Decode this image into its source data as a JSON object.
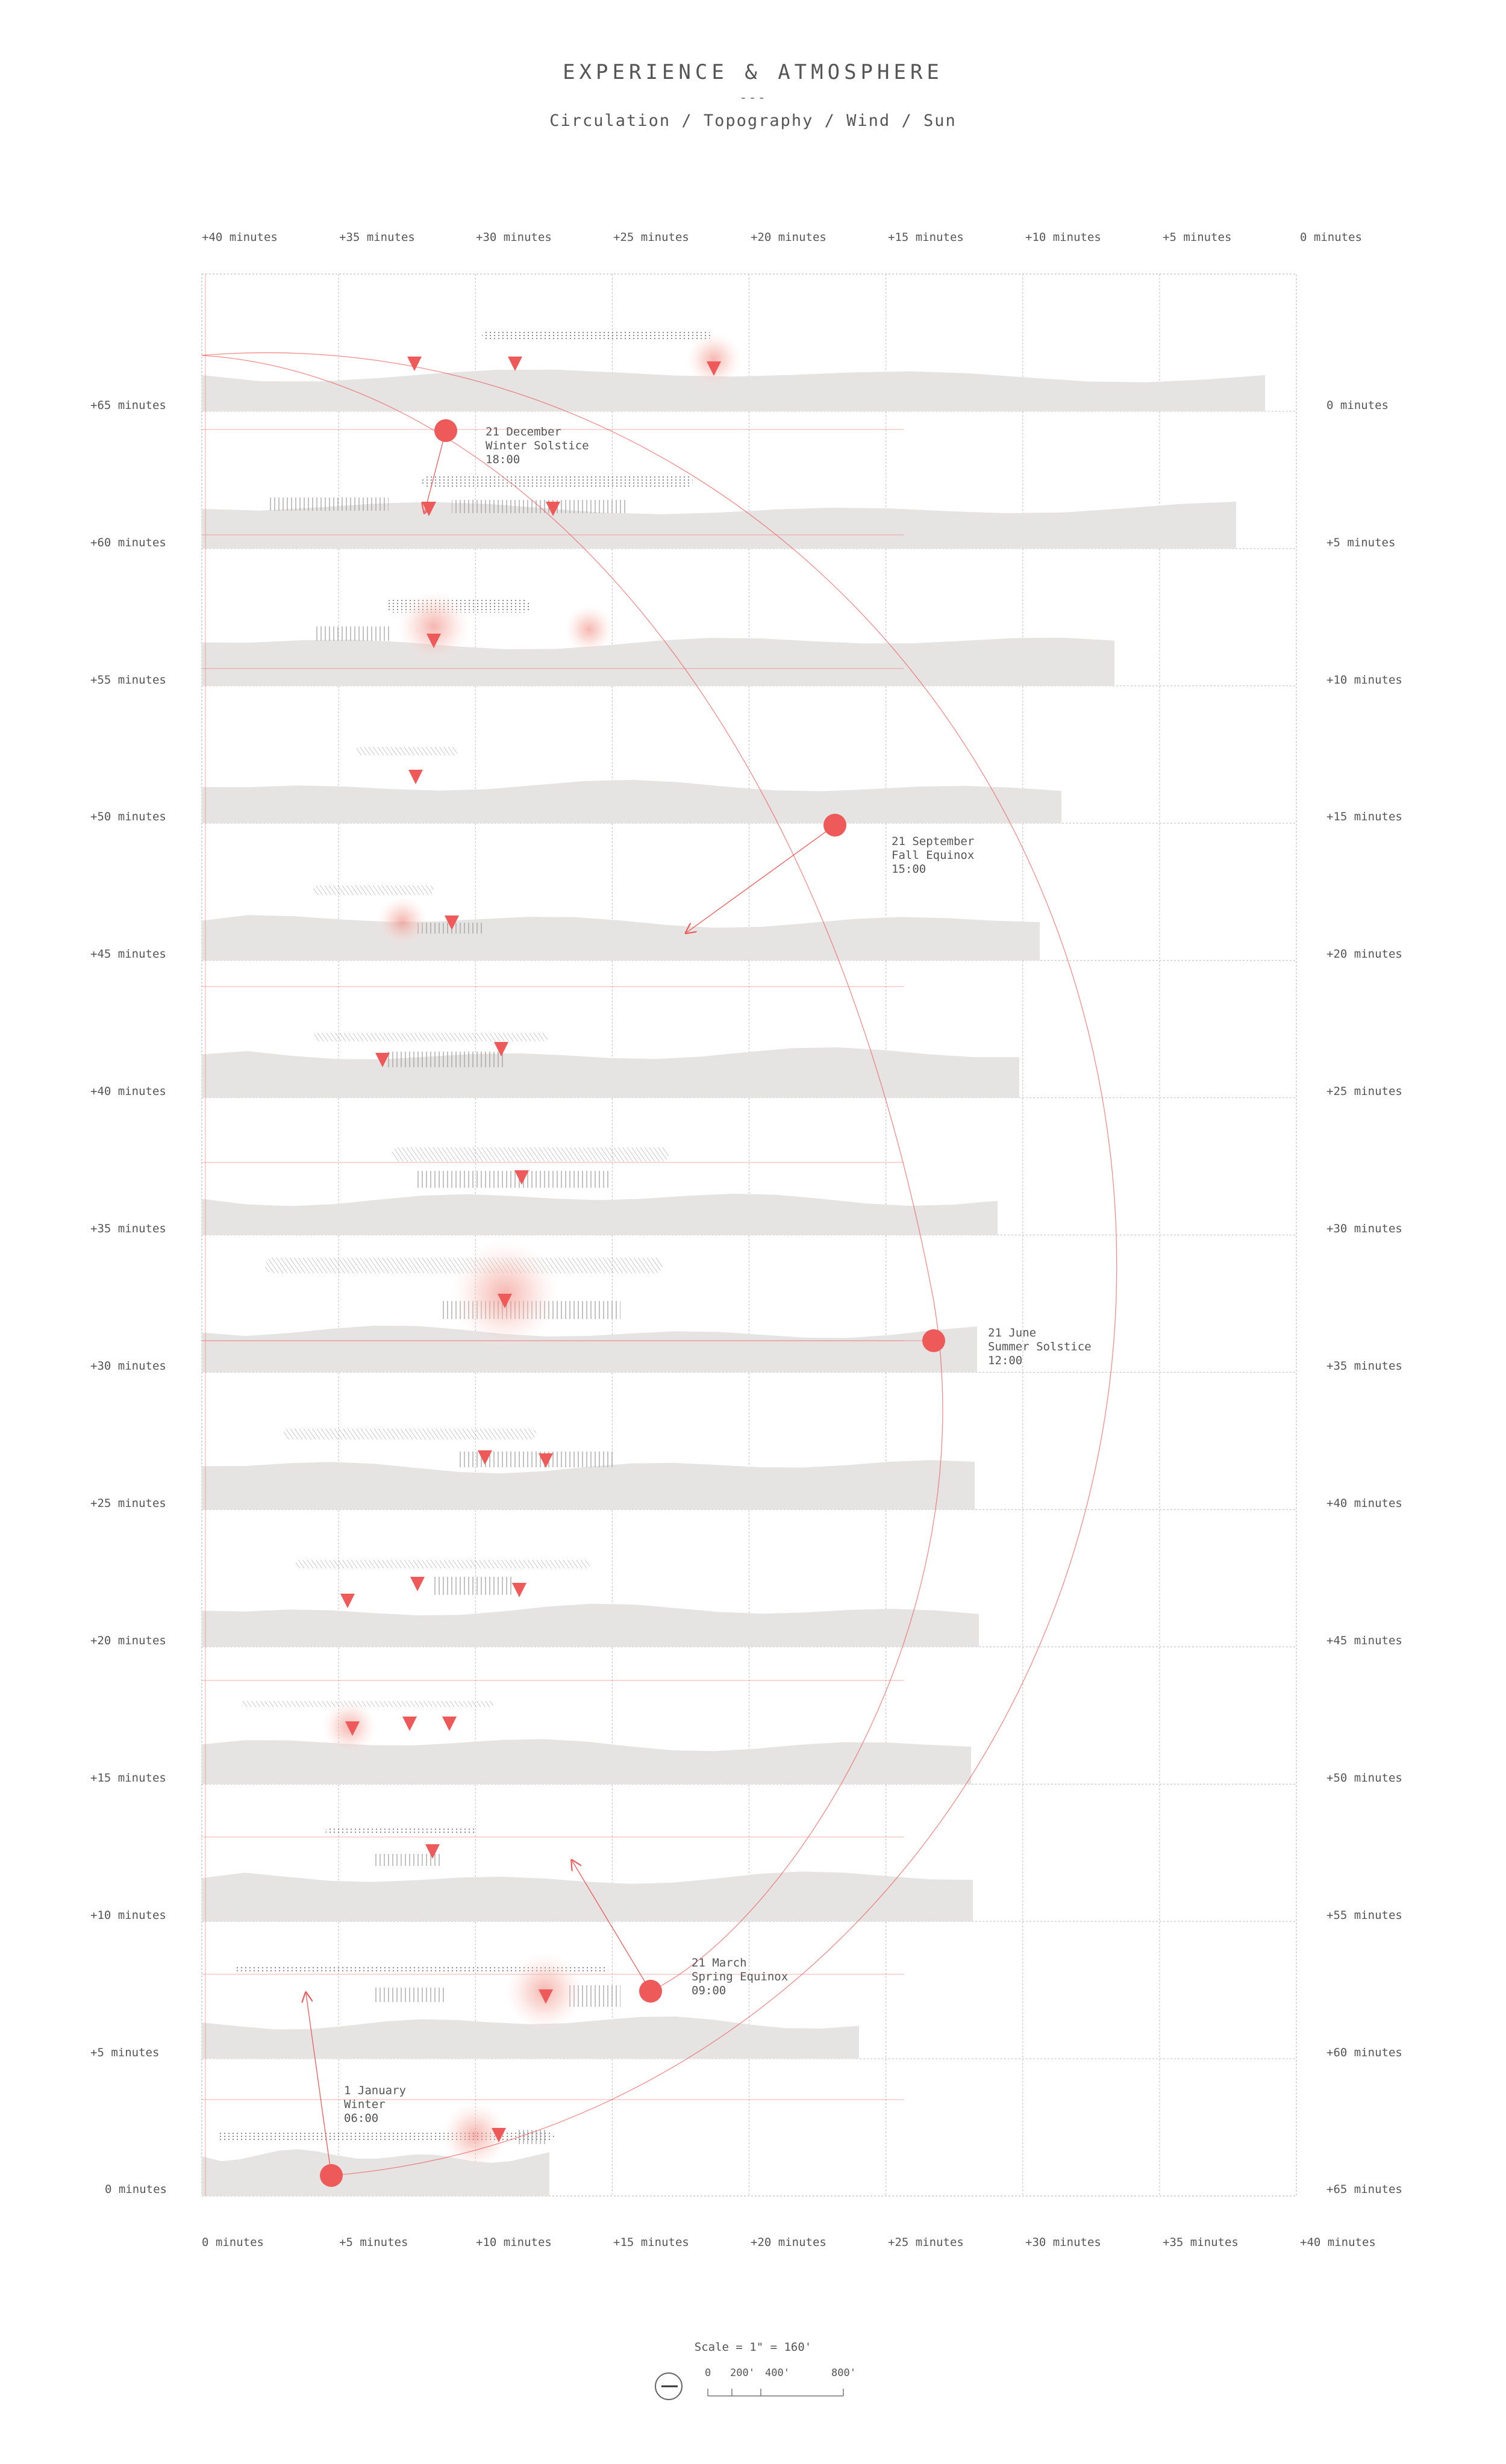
{
  "header": {
    "title": "EXPERIENCE & ATMOSPHERE",
    "separator": "---",
    "subtitle": "Circulation / Topography / Wind / Sun"
  },
  "axes": {
    "top": [
      "+40 minutes",
      "+35 minutes",
      "+30 minutes",
      "+25 minutes",
      "+20 minutes",
      "+15 minutes",
      "+10 minutes",
      "+5 minutes",
      "0 minutes"
    ],
    "bottom": [
      "0 minutes",
      "+5 minutes",
      "+10 minutes",
      "+15 minutes",
      "+20 minutes",
      "+25 minutes",
      "+30 minutes",
      "+35 minutes",
      "+40 minutes"
    ],
    "left": [
      "+65 minutes",
      "+60 minutes",
      "+55 minutes",
      "+50 minutes",
      "+45 minutes",
      "+40 minutes",
      "+35 minutes",
      "+30 minutes",
      "+25 minutes",
      "+20 minutes",
      "+15 minutes",
      "+10 minutes",
      "+5 minutes",
      "0 minutes"
    ],
    "right": [
      "0 minutes",
      "+5 minutes",
      "+10 minutes",
      "+15 minutes",
      "+20 minutes",
      "+25 minutes",
      "+30 minutes",
      "+35 minutes",
      "+40 minutes",
      "+45 minutes",
      "+50 minutes",
      "+55 minutes",
      "+60 minutes",
      "+65 minutes"
    ]
  },
  "sun_points": [
    {
      "date": "21 December",
      "event": "Winter Solstice",
      "time": "18:00"
    },
    {
      "date": "21 September",
      "event": "Fall Equinox",
      "time": "15:00"
    },
    {
      "date": "21 June",
      "event": "Summer Solstice",
      "time": "12:00"
    },
    {
      "date": "21 March",
      "event": "Spring Equinox",
      "time": "09:00"
    },
    {
      "date": "1 January",
      "event": "Winter",
      "time": "06:00"
    }
  ],
  "scale": {
    "label": "Scale = 1\" = 160'",
    "marks": [
      "0",
      "200'",
      "400'",
      "800'"
    ]
  },
  "colors": {
    "accent": "#ee5a5a",
    "terrain": "#e6e4e3",
    "grid": "#c8c8c8",
    "halo": "#f8c9c2"
  }
}
